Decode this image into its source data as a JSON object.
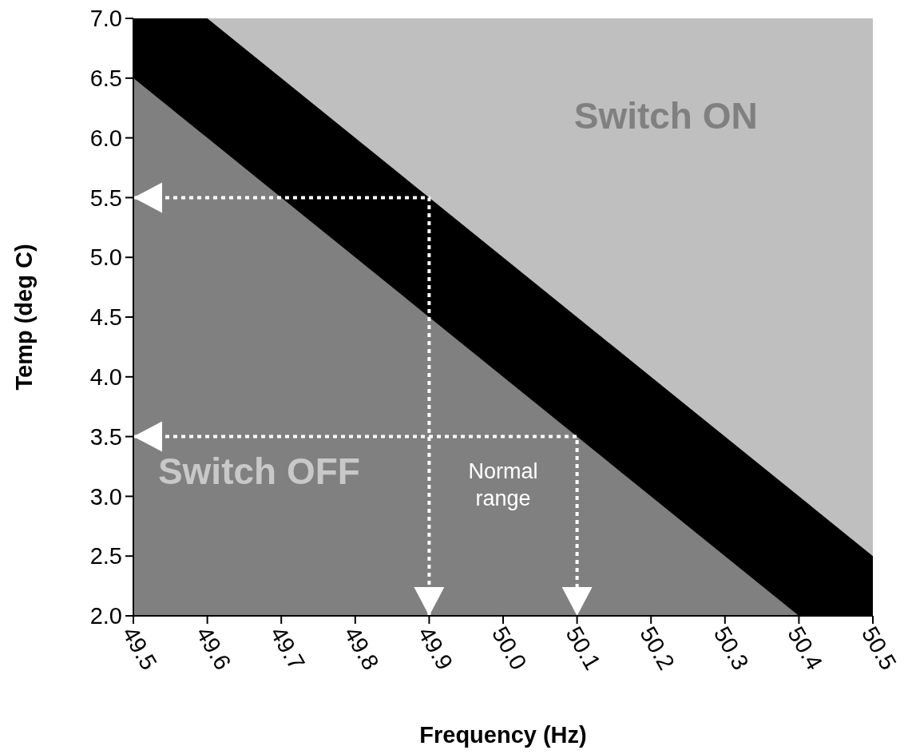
{
  "chart_data": {
    "type": "area",
    "xlabel": "Frequency (Hz)",
    "ylabel": "Temp (deg C)",
    "xlim": [
      49.5,
      50.5
    ],
    "ylim": [
      2.0,
      7.0
    ],
    "xticks": [
      49.5,
      49.6,
      49.7,
      49.8,
      49.9,
      {
        "value": 50.0,
        "label": "50.0"
      },
      50.1,
      50.2,
      50.3,
      50.4,
      50.5
    ],
    "yticks": [
      {
        "value": 2.0,
        "label": "2.0"
      },
      2.5,
      {
        "value": 3.0,
        "label": "3.0"
      },
      3.5,
      {
        "value": 4.0,
        "label": "4.0"
      },
      4.5,
      {
        "value": 5.0,
        "label": "5.0"
      },
      5.5,
      {
        "value": 6.0,
        "label": "6.0"
      },
      6.5,
      {
        "value": 7.0,
        "label": "7.0"
      }
    ],
    "grid": false,
    "series": [
      {
        "color": "#000000",
        "x": [
          49.5,
          49.6,
          50.5
        ],
        "values": [
          7.0,
          7.0,
          2.5
        ]
      },
      {
        "color": "#808080",
        "x": [
          49.5,
          50.4,
          50.5
        ],
        "values": [
          6.5,
          2.0,
          2.0
        ]
      },
      {
        "type": "line",
        "color": "#ffffff",
        "line_style": "dotted",
        "x": [
          49.5,
          49.9,
          49.9
        ],
        "values": [
          5.5,
          5.5,
          2.0
        ]
      },
      {
        "type": "line",
        "color": "#ffffff",
        "line_style": "dotted",
        "x": [
          49.5,
          50.1,
          50.1
        ],
        "values": [
          3.5,
          3.5,
          2.0
        ]
      }
    ],
    "annotations": [
      "Switch ON",
      "Switch OFF",
      "Normal range"
    ]
  }
}
